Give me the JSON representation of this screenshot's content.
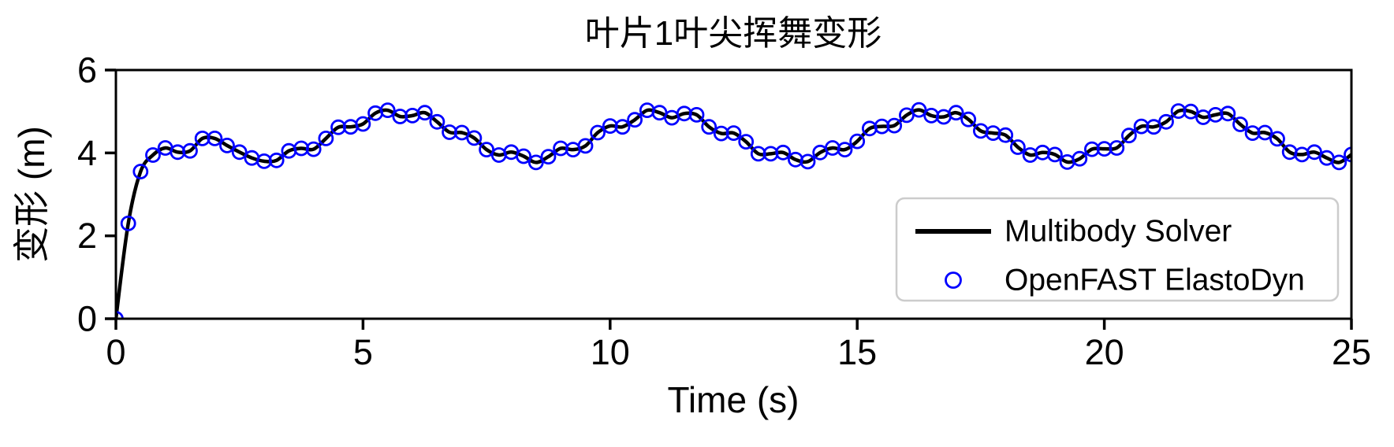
{
  "page": {
    "background": "#ffffff"
  },
  "chart_data": {
    "type": "line",
    "title": "叶片1叶尖挥舞变形",
    "xlabel": "Time (s)",
    "ylabel": "变形 (m)",
    "xlim": [
      0,
      25
    ],
    "ylim": [
      0,
      6
    ],
    "xticks": [
      0,
      5,
      10,
      15,
      20,
      25
    ],
    "yticks": [
      0,
      2,
      4,
      6
    ],
    "grid": false,
    "axis_color": "#000000",
    "legend": {
      "position": "lower-right-inside",
      "border_color": "#cccccc",
      "background": "#ffffff"
    },
    "x": [
      0,
      0.25,
      0.5,
      0.75,
      1,
      1.25,
      1.5,
      1.75,
      2,
      2.25,
      2.5,
      2.75,
      3,
      3.25,
      3.5,
      3.75,
      4,
      4.25,
      4.5,
      4.75,
      5,
      5.25,
      5.5,
      5.75,
      6,
      6.25,
      6.5,
      6.75,
      7,
      7.25,
      7.5,
      7.75,
      8,
      8.25,
      8.5,
      8.75,
      9,
      9.25,
      9.5,
      9.75,
      10,
      10.25,
      10.5,
      10.75,
      11,
      11.25,
      11.5,
      11.75,
      12,
      12.25,
      12.5,
      12.75,
      13,
      13.25,
      13.5,
      13.75,
      14,
      14.25,
      14.5,
      14.75,
      15,
      15.25,
      15.5,
      15.75,
      16,
      16.25,
      16.5,
      16.75,
      17,
      17.25,
      17.5,
      17.75,
      18,
      18.25,
      18.5,
      18.75,
      19,
      19.25,
      19.5,
      19.75,
      20,
      20.25,
      20.5,
      20.75,
      21,
      21.25,
      21.5,
      21.75,
      22,
      22.25,
      22.5,
      22.75,
      23,
      23.25,
      23.5,
      23.75,
      24,
      24.25,
      24.5,
      24.75,
      25
    ],
    "y": [
      0.0,
      2.3,
      3.55,
      3.95,
      4.12,
      4.02,
      4.05,
      4.35,
      4.35,
      4.18,
      4.02,
      3.88,
      3.8,
      3.82,
      4.05,
      4.11,
      4.09,
      4.35,
      4.62,
      4.63,
      4.7,
      4.96,
      5.03,
      4.88,
      4.9,
      4.97,
      4.75,
      4.5,
      4.49,
      4.36,
      4.08,
      3.95,
      4.02,
      3.92,
      3.77,
      3.91,
      4.11,
      4.08,
      4.17,
      4.49,
      4.65,
      4.63,
      4.8,
      5.03,
      4.97,
      4.85,
      4.95,
      4.92,
      4.63,
      4.47,
      4.48,
      4.27,
      3.98,
      3.98,
      4.01,
      3.84,
      3.79,
      4.01,
      4.12,
      4.08,
      4.28,
      4.59,
      4.64,
      4.66,
      4.91,
      5.04,
      4.9,
      4.87,
      4.97,
      4.81,
      4.53,
      4.48,
      4.43,
      4.14,
      3.95,
      4.01,
      3.96,
      3.78,
      3.86,
      4.09,
      4.1,
      4.12,
      4.42,
      4.64,
      4.63,
      4.75,
      5.01,
      5.0,
      4.86,
      4.92,
      4.95,
      4.69,
      4.48,
      4.49,
      4.34,
      4.02,
      3.96,
      4.02,
      3.88,
      3.77,
      3.96
    ],
    "series": [
      {
        "name": "Multibody Solver",
        "style": "solid-line",
        "color": "#000000",
        "line_width": 4.5
      },
      {
        "name": "OpenFAST ElastoDyn",
        "style": "open-circle-markers",
        "color": "#0000ff",
        "marker_radius": 8.5,
        "marker_interval_s": 0.25
      }
    ]
  }
}
